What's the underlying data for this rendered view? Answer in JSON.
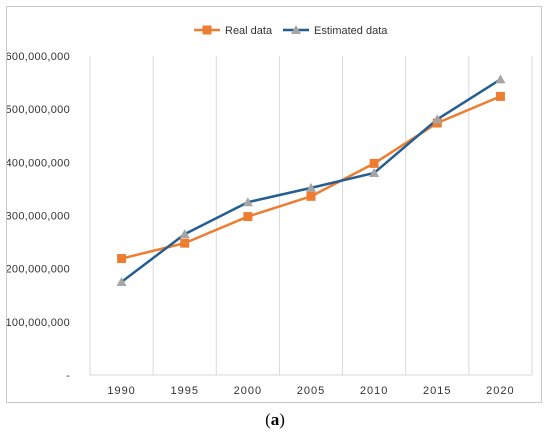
{
  "chart_data": {
    "type": "line",
    "x": [
      "1990",
      "1995",
      "2000",
      "2005",
      "2010",
      "2015",
      "2020"
    ],
    "series": [
      {
        "name": "Real data",
        "color": "#ED7D31",
        "marker": "square",
        "values": [
          219000000,
          248000000,
          298000000,
          336000000,
          398000000,
          474000000,
          524000000
        ]
      },
      {
        "name": "Estimated data",
        "color": "#255E91",
        "marker_color": "#A5A5A5",
        "marker": "triangle",
        "values": [
          175000000,
          265000000,
          325000000,
          352000000,
          380000000,
          481000000,
          556000000
        ]
      }
    ],
    "ylim": [
      0,
      600000000
    ],
    "y_ticks": [
      "-",
      "100,000,000",
      "200,000,000",
      "300,000,000",
      "400,000,000",
      "500,000,000",
      "600,000,000"
    ],
    "grid": "vertical",
    "legend_position": "top-center"
  },
  "caption": {
    "open": "(",
    "letter": "a",
    "close": ")"
  }
}
